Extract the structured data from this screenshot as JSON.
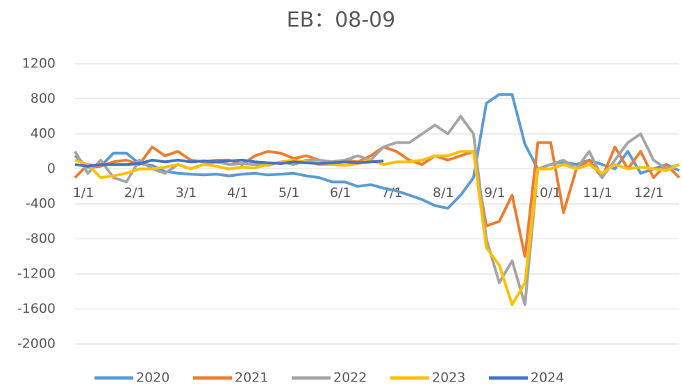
{
  "chart_data": {
    "type": "line",
    "title": "EB：08-09",
    "categories": [
      "1/1",
      null,
      null,
      null,
      "2/1",
      null,
      null,
      null,
      "3/1",
      null,
      null,
      null,
      "4/1",
      null,
      null,
      null,
      "5/1",
      null,
      null,
      null,
      "6/1",
      null,
      null,
      null,
      "7/1",
      null,
      null,
      null,
      "8/1",
      null,
      null,
      null,
      "9/1",
      null,
      null,
      null,
      "10/1",
      null,
      null,
      null,
      "11/1",
      null,
      null,
      null,
      "12/1",
      null,
      null,
      null
    ],
    "series": [
      {
        "name": "2020",
        "color": "#5b9bd5",
        "values": [
          150,
          20,
          30,
          180,
          180,
          60,
          40,
          -30,
          -50,
          -60,
          -70,
          -60,
          -80,
          -60,
          -50,
          -70,
          -60,
          -50,
          -80,
          -100,
          -150,
          -150,
          -200,
          -180,
          -220,
          -250,
          -300,
          -350,
          -420,
          -450,
          -300,
          -100,
          750,
          850,
          850,
          280,
          0,
          50,
          80,
          50,
          100,
          50,
          0,
          200,
          -50,
          0,
          50,
          -20
        ]
      },
      {
        "name": "2021",
        "color": "#ed7d31",
        "values": [
          -100,
          50,
          30,
          80,
          100,
          50,
          250,
          150,
          200,
          100,
          80,
          100,
          100,
          50,
          150,
          200,
          180,
          120,
          150,
          100,
          80,
          100,
          80,
          150,
          250,
          200,
          100,
          50,
          150,
          100,
          150,
          200,
          -650,
          -600,
          -300,
          -1000,
          300,
          300,
          -500,
          0,
          100,
          -100,
          250,
          0,
          200,
          -100,
          50,
          -100
        ]
      },
      {
        "name": "2022",
        "color": "#a5a5a5",
        "values": [
          200,
          -50,
          100,
          -100,
          -150,
          100,
          0,
          -50,
          50,
          0,
          50,
          80,
          50,
          60,
          50,
          40,
          80,
          50,
          100,
          100,
          80,
          100,
          150,
          100,
          250,
          300,
          300,
          400,
          500,
          400,
          600,
          400,
          -800,
          -1300,
          -1050,
          -1550,
          0,
          50,
          100,
          0,
          200,
          -100,
          100,
          300,
          400,
          100,
          0,
          50
        ]
      },
      {
        "name": "2023",
        "color": "#ffc000",
        "values": [
          100,
          50,
          -100,
          -80,
          -50,
          0,
          0,
          20,
          50,
          0,
          50,
          30,
          0,
          20,
          10,
          50,
          80,
          100,
          80,
          50,
          50,
          40,
          60,
          100,
          50,
          80,
          80,
          100,
          150,
          150,
          200,
          200,
          -900,
          -1100,
          -1550,
          -1300,
          0,
          0,
          50,
          0,
          50,
          -50,
          50,
          0,
          20,
          0,
          -20,
          50
        ]
      },
      {
        "name": "2024",
        "color": "#4472c4",
        "values": [
          50,
          30,
          50,
          50,
          50,
          60,
          100,
          80,
          100,
          80,
          90,
          80,
          90,
          100,
          80,
          70,
          60,
          80,
          70,
          60,
          70,
          80,
          70,
          80,
          90,
          null,
          null,
          null,
          null,
          null,
          null,
          null,
          null,
          null,
          null,
          null,
          null,
          null,
          null,
          null,
          null,
          null,
          null,
          null,
          null,
          null,
          null,
          null
        ]
      }
    ],
    "ylim": [
      -2000,
      1200
    ],
    "yticks": [
      -2000,
      -1600,
      -1200,
      -800,
      -400,
      0,
      400,
      800,
      1200
    ],
    "grid": true,
    "legend": "bottom"
  }
}
